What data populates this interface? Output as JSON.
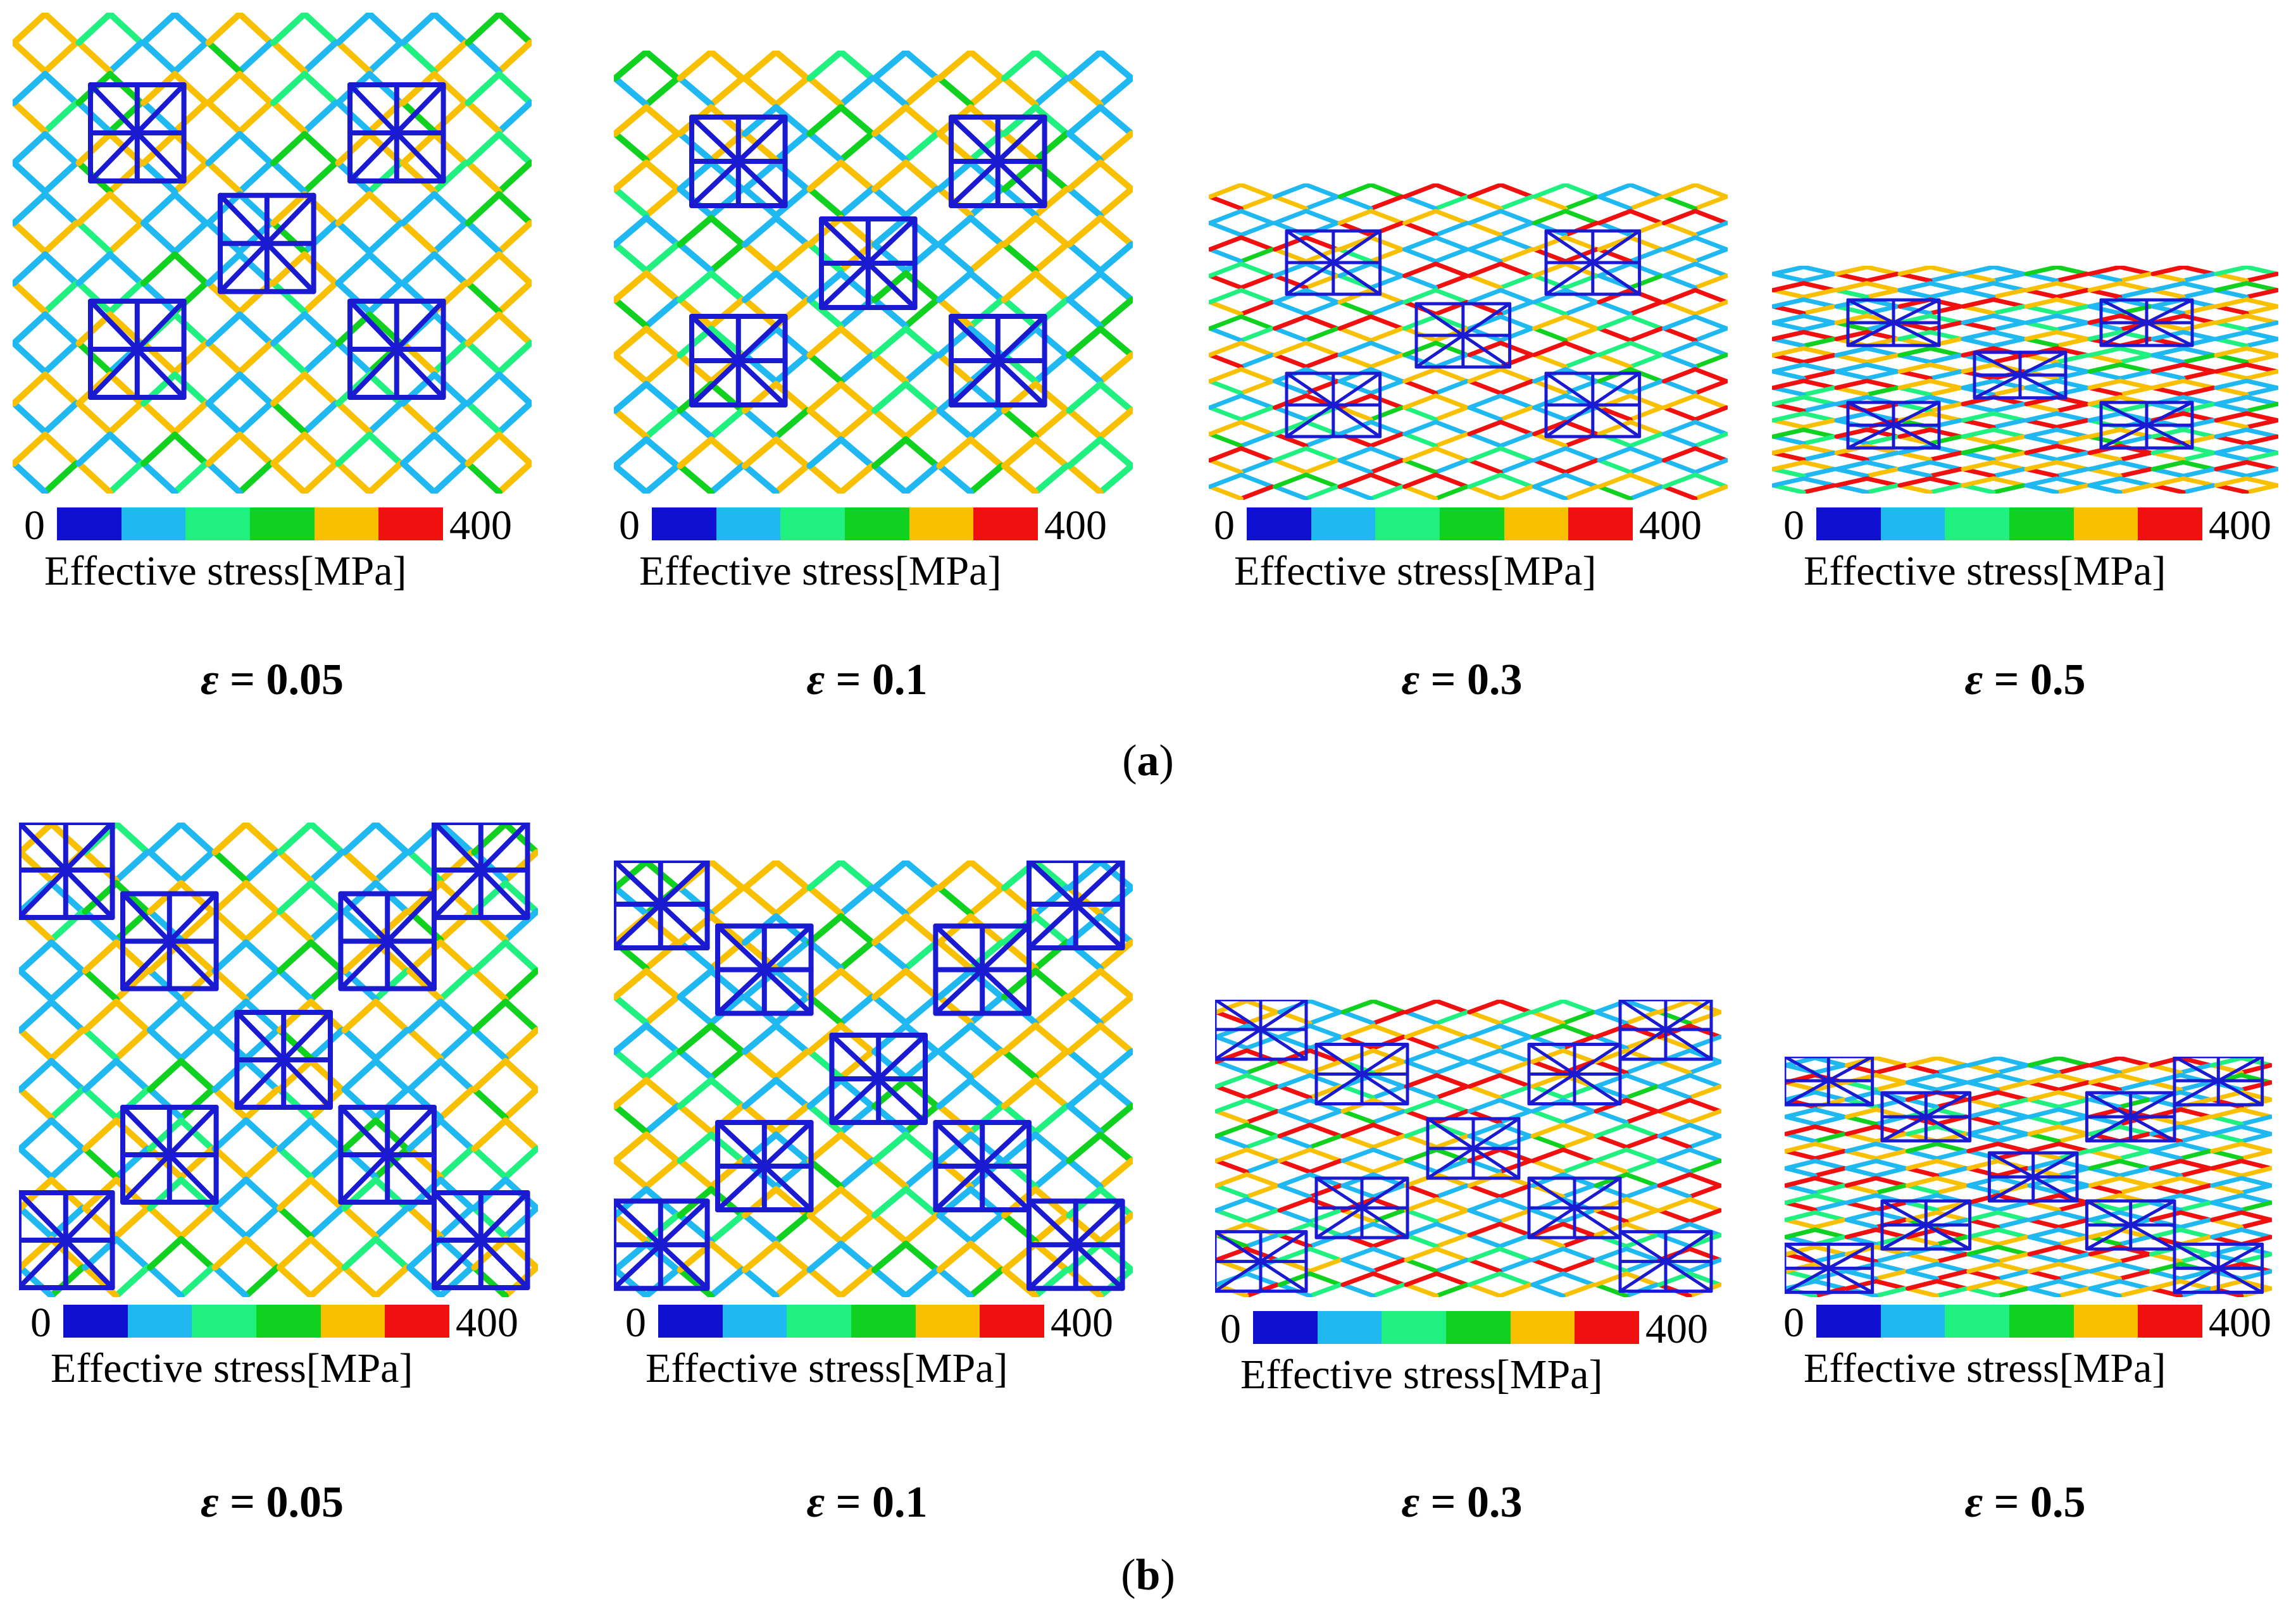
{
  "legend": {
    "min": "0",
    "max": "400",
    "title": "Effective stress[MPa]",
    "colors": [
      "#1010d0",
      "#20b8f0",
      "#20f080",
      "#10d020",
      "#f8c000",
      "#f01010"
    ]
  },
  "panels": [
    {
      "label_open": "(",
      "label_letter": "a",
      "label_close": ")",
      "items": [
        {
          "symbol": "ε",
          "value": " = 0.05",
          "strain": 0.05
        },
        {
          "symbol": "ε",
          "value": " = 0.1",
          "strain": 0.1
        },
        {
          "symbol": "ε",
          "value": " = 0.3",
          "strain": 0.3
        },
        {
          "symbol": "ε",
          "value": " = 0.5",
          "strain": 0.5
        }
      ]
    },
    {
      "label_open": "(",
      "label_letter": "b",
      "label_close": ")",
      "items": [
        {
          "symbol": "ε",
          "value": " = 0.05",
          "strain": 0.05
        },
        {
          "symbol": "ε",
          "value": " = 0.1",
          "strain": 0.1
        },
        {
          "symbol": "ε",
          "value": " = 0.3",
          "strain": 0.3
        },
        {
          "symbol": "ε",
          "value": " = 0.5",
          "strain": 0.5
        }
      ]
    }
  ]
}
